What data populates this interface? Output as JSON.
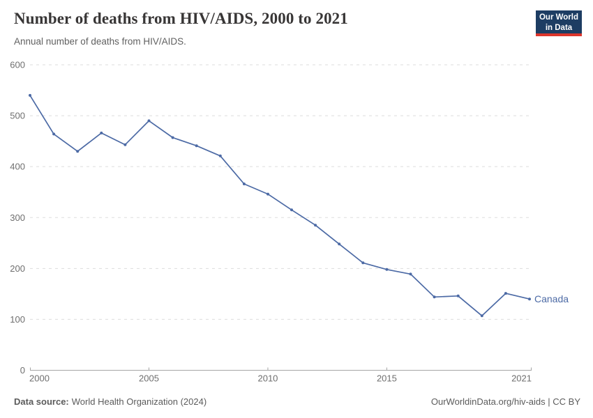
{
  "header": {
    "title": "Number of deaths from HIV/AIDS, 2000 to 2021",
    "subtitle": "Annual number of deaths from HIV/AIDS.",
    "logo": {
      "line1": "Our World",
      "line2": "in Data"
    }
  },
  "chart_data": {
    "type": "line",
    "title": "Number of deaths from HIV/AIDS, 2000 to 2021",
    "subtitle": "Annual number of deaths from HIV/AIDS.",
    "xlabel": "",
    "ylabel": "",
    "xlim": [
      2000,
      2021
    ],
    "ylim": [
      0,
      600
    ],
    "y_ticks": [
      0,
      100,
      200,
      300,
      400,
      500,
      600
    ],
    "x_ticks": [
      {
        "value": 2000,
        "label": "2000",
        "align": "start"
      },
      {
        "value": 2005,
        "label": "2005",
        "align": "middle"
      },
      {
        "value": 2010,
        "label": "2010",
        "align": "middle"
      },
      {
        "value": 2015,
        "label": "2015",
        "align": "middle"
      },
      {
        "value": 2021,
        "label": "2021",
        "align": "end"
      }
    ],
    "grid": "horizontal-dashed",
    "legend_position": "end-of-line",
    "series": [
      {
        "name": "Canada",
        "color": "#4c6aa5",
        "x": [
          2000,
          2001,
          2002,
          2003,
          2004,
          2005,
          2006,
          2007,
          2008,
          2009,
          2010,
          2011,
          2012,
          2013,
          2014,
          2015,
          2016,
          2017,
          2018,
          2019,
          2020,
          2021
        ],
        "values": [
          540,
          464,
          430,
          466,
          443,
          490,
          457,
          441,
          421,
          366,
          346,
          315,
          285,
          248,
          211,
          198,
          189,
          144,
          146,
          107,
          151,
          140
        ]
      }
    ]
  },
  "footer": {
    "source_label": "Data source:",
    "source_value": "World Health Organization (2024)",
    "right_text": "OurWorldinData.org/hiv-aids | CC BY"
  },
  "colors": {
    "line": "#4c6aa5",
    "grid": "#dddddd",
    "axis": "#a5a5a5",
    "tick_text": "#6e6e6e",
    "title_text": "#383636",
    "logo_navy": "#1d3d63",
    "logo_red": "#dc352c"
  }
}
